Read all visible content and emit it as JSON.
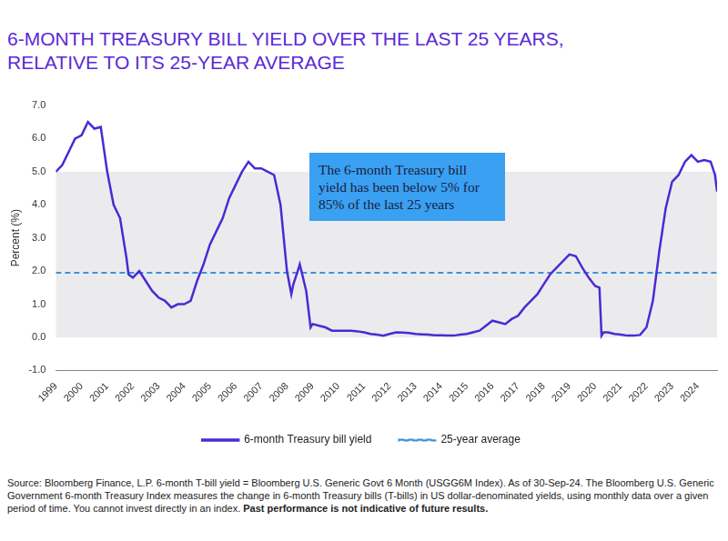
{
  "chart_data": {
    "type": "line",
    "title": [
      "6-MONTH TREASURY BILL YIELD OVER THE LAST 25 YEARS,",
      "RELATIVE TO ITS 25-YEAR AVERAGE"
    ],
    "y_label": "Percent (%)",
    "annotation": [
      "The 6-month Treasury bill",
      "yield has been below 5% for",
      "85% of the last 25 years"
    ],
    "source": "Source: Bloomberg Finance, L.P. 6-month T-bill yield = Bloomberg U.S. Generic Govt 6 Month (USGG6M Index). As of 30-Sep-24. The Bloomberg U.S. Generic Government 6-month Treasury Index measures the change in 6-month Treasury bills (T-bills) in US dollar-denominated yields, using monthly data over a given period of time. You cannot invest directly in an index.",
    "disclaimer": "Past performance is not indicative of future results.",
    "shaded_range": [
      0,
      5
    ],
    "x": [
      1999.0,
      1999.25,
      1999.5,
      1999.75,
      2000.0,
      2000.25,
      2000.5,
      2000.75,
      2001.0,
      2001.25,
      2001.5,
      2001.75,
      2001.83,
      2002.0,
      2002.25,
      2002.5,
      2002.75,
      2003.0,
      2003.25,
      2003.5,
      2003.75,
      2004.0,
      2004.25,
      2004.5,
      2004.75,
      2005.0,
      2005.25,
      2005.5,
      2005.75,
      2006.0,
      2006.25,
      2006.5,
      2006.75,
      2007.0,
      2007.25,
      2007.5,
      2007.75,
      2008.0,
      2008.17,
      2008.25,
      2008.42,
      2008.5,
      2008.75,
      2008.92,
      2009.0,
      2009.25,
      2009.5,
      2009.75,
      2010.0,
      2010.25,
      2010.5,
      2010.75,
      2011.0,
      2011.25,
      2011.5,
      2011.75,
      2012.0,
      2012.25,
      2012.5,
      2012.75,
      2013.0,
      2013.25,
      2013.5,
      2013.75,
      2014.0,
      2014.25,
      2014.5,
      2014.75,
      2015.0,
      2015.25,
      2015.5,
      2015.75,
      2016.0,
      2016.25,
      2016.5,
      2016.75,
      2017.0,
      2017.25,
      2017.5,
      2017.75,
      2018.0,
      2018.25,
      2018.5,
      2018.75,
      2019.0,
      2019.25,
      2019.5,
      2019.75,
      2020.0,
      2020.17,
      2020.25,
      2020.33,
      2020.5,
      2020.75,
      2021.0,
      2021.25,
      2021.5,
      2021.75,
      2022.0,
      2022.25,
      2022.5,
      2022.75,
      2023.0,
      2023.25,
      2023.5,
      2023.75,
      2024.0,
      2024.25,
      2024.5,
      2024.67,
      2024.75
    ],
    "series": [
      {
        "name": "6-month Treasury bill yield",
        "color": "#4b2ad3",
        "line_style": "solid",
        "marker": "none",
        "values": [
          5.0,
          5.2,
          5.6,
          6.0,
          6.1,
          6.5,
          6.3,
          6.35,
          5.0,
          4.0,
          3.6,
          2.4,
          1.9,
          1.8,
          2.0,
          1.7,
          1.4,
          1.2,
          1.1,
          0.9,
          1.0,
          1.0,
          1.1,
          1.7,
          2.2,
          2.8,
          3.2,
          3.6,
          4.2,
          4.6,
          5.0,
          5.3,
          5.1,
          5.1,
          5.0,
          4.9,
          4.0,
          2.0,
          1.3,
          1.6,
          2.0,
          2.2,
          1.4,
          0.3,
          0.4,
          0.35,
          0.3,
          0.2,
          0.2,
          0.2,
          0.2,
          0.18,
          0.15,
          0.1,
          0.08,
          0.05,
          0.1,
          0.15,
          0.14,
          0.13,
          0.1,
          0.09,
          0.08,
          0.06,
          0.06,
          0.05,
          0.05,
          0.08,
          0.1,
          0.15,
          0.2,
          0.35,
          0.5,
          0.45,
          0.4,
          0.55,
          0.65,
          0.9,
          1.1,
          1.3,
          1.6,
          1.9,
          2.1,
          2.3,
          2.5,
          2.45,
          2.1,
          1.8,
          1.55,
          1.5,
          0.05,
          0.15,
          0.15,
          0.1,
          0.08,
          0.05,
          0.05,
          0.07,
          0.3,
          1.1,
          2.6,
          3.9,
          4.7,
          4.9,
          5.3,
          5.5,
          5.3,
          5.35,
          5.3,
          4.9,
          4.4
        ]
      },
      {
        "name": "25-year average",
        "color": "#3b92dc",
        "line_style": "dashed",
        "marker": "none",
        "values": [
          1.95,
          1.95,
          1.95,
          1.95,
          1.95,
          1.95,
          1.95,
          1.95,
          1.95,
          1.95,
          1.95,
          1.95,
          1.95,
          1.95,
          1.95,
          1.95,
          1.95,
          1.95,
          1.95,
          1.95,
          1.95,
          1.95,
          1.95,
          1.95,
          1.95,
          1.95,
          1.95,
          1.95,
          1.95,
          1.95,
          1.95,
          1.95,
          1.95,
          1.95,
          1.95,
          1.95,
          1.95,
          1.95,
          1.95,
          1.95,
          1.95,
          1.95,
          1.95,
          1.95,
          1.95,
          1.95,
          1.95,
          1.95,
          1.95,
          1.95,
          1.95,
          1.95,
          1.95,
          1.95,
          1.95,
          1.95,
          1.95,
          1.95,
          1.95,
          1.95,
          1.95,
          1.95,
          1.95,
          1.95,
          1.95,
          1.95,
          1.95,
          1.95,
          1.95,
          1.95,
          1.95,
          1.95,
          1.95,
          1.95,
          1.95,
          1.95,
          1.95,
          1.95,
          1.95,
          1.95,
          1.95,
          1.95,
          1.95,
          1.95,
          1.95,
          1.95,
          1.95,
          1.95,
          1.95,
          1.95,
          1.95,
          1.95,
          1.95,
          1.95,
          1.95,
          1.95,
          1.95,
          1.95,
          1.95,
          1.95,
          1.95,
          1.95,
          1.95,
          1.95,
          1.95,
          1.95,
          1.95,
          1.95,
          1.95,
          1.95,
          1.95
        ]
      }
    ],
    "xlim": [
      1999,
      2024.75
    ],
    "xticks": [
      1999,
      2000,
      2001,
      2002,
      2003,
      2004,
      2005,
      2006,
      2007,
      2008,
      2009,
      2010,
      2011,
      2012,
      2013,
      2014,
      2015,
      2016,
      2017,
      2018,
      2019,
      2020,
      2021,
      2022,
      2023,
      2024
    ],
    "ylim": [
      -1,
      7
    ],
    "yticks": [
      {
        "value": -1,
        "label": "-1.0"
      },
      {
        "value": 0,
        "label": "0.0"
      },
      {
        "value": 1,
        "label": "1.0"
      },
      {
        "value": 2,
        "label": "2.0"
      },
      {
        "value": 3,
        "label": "3.0"
      },
      {
        "value": 4,
        "label": "4.0"
      },
      {
        "value": 5,
        "label": "5.0"
      },
      {
        "value": 6,
        "label": "6.0"
      },
      {
        "value": 7,
        "label": "7.0"
      }
    ],
    "grid": false,
    "legend": "bottom"
  }
}
